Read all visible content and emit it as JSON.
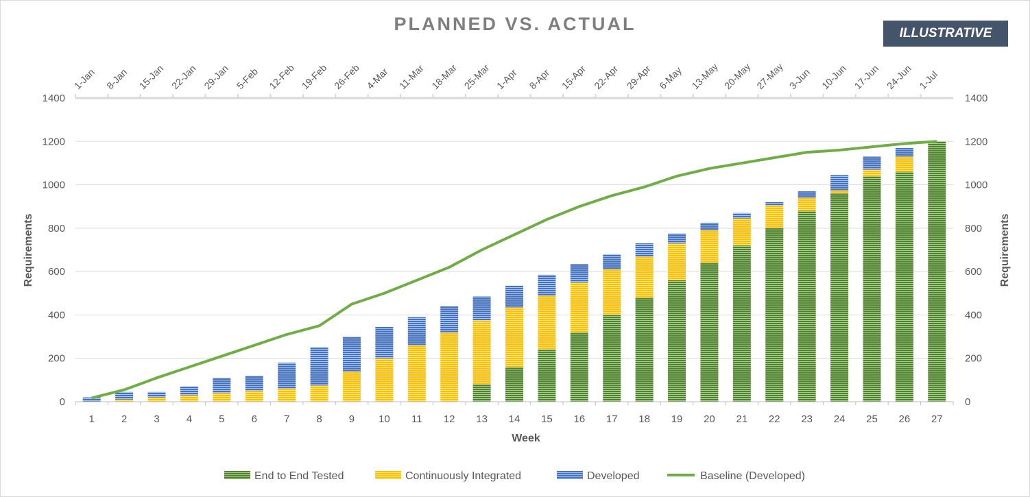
{
  "title": "PLANNED VS. ACTUAL",
  "badge": "ILLUSTRATIVE",
  "colors": {
    "e2e": "#548235",
    "ci": "#ffc000",
    "dev": "#4472c4",
    "baseline": "#70ad47"
  },
  "chart_data": {
    "type": "bar",
    "stacked": true,
    "title": "PLANNED VS. ACTUAL",
    "xlabel": "Week",
    "ylabel": "Requirements",
    "y2label": "Requirements",
    "ylim": [
      0,
      1400
    ],
    "yticks": [
      0,
      200,
      400,
      600,
      800,
      1000,
      1200,
      1400
    ],
    "categories": [
      "1",
      "2",
      "3",
      "4",
      "5",
      "6",
      "7",
      "8",
      "9",
      "10",
      "11",
      "12",
      "13",
      "14",
      "15",
      "16",
      "17",
      "18",
      "19",
      "20",
      "21",
      "22",
      "23",
      "24",
      "25",
      "26",
      "27"
    ],
    "top_axis_labels": [
      "1-Jan",
      "8-Jan",
      "15-Jan",
      "22-Jan",
      "29-Jan",
      "5-Feb",
      "12-Feb",
      "19-Feb",
      "26-Feb",
      "4-Mar",
      "11-Mar",
      "18-Mar",
      "25-Mar",
      "1-Apr",
      "8-Apr",
      "15-Apr",
      "22-Apr",
      "29-Apr",
      "6-May",
      "13-May",
      "20-May",
      "27-May",
      "3-Jun",
      "10-Jun",
      "17-Jun",
      "24-Jun",
      "1-Jul"
    ],
    "series": [
      {
        "name": "End to End Tested",
        "kind": "bar",
        "values": [
          0,
          0,
          0,
          0,
          0,
          0,
          0,
          0,
          0,
          0,
          0,
          0,
          80,
          160,
          240,
          320,
          400,
          480,
          560,
          640,
          720,
          800,
          880,
          960,
          1040,
          1060,
          1200
        ]
      },
      {
        "name": "Continuously Integrated",
        "kind": "bar",
        "values": [
          0,
          10,
          20,
          30,
          40,
          50,
          60,
          75,
          140,
          200,
          260,
          320,
          295,
          275,
          250,
          230,
          210,
          190,
          170,
          150,
          125,
          105,
          60,
          15,
          30,
          70,
          0
        ]
      },
      {
        "name": "Developed",
        "kind": "bar",
        "values": [
          20,
          35,
          25,
          40,
          70,
          70,
          120,
          175,
          160,
          145,
          130,
          120,
          110,
          100,
          95,
          85,
          70,
          60,
          45,
          35,
          25,
          15,
          30,
          70,
          60,
          40,
          0
        ]
      },
      {
        "name": "Baseline (Developed)",
        "kind": "line",
        "values": [
          17,
          55,
          110,
          160,
          210,
          260,
          310,
          350,
          450,
          500,
          560,
          620,
          700,
          770,
          840,
          900,
          950,
          990,
          1040,
          1075,
          1100,
          1125,
          1150,
          1160,
          1175,
          1190,
          1200
        ]
      }
    ],
    "legend": "bottom",
    "grid": true
  }
}
